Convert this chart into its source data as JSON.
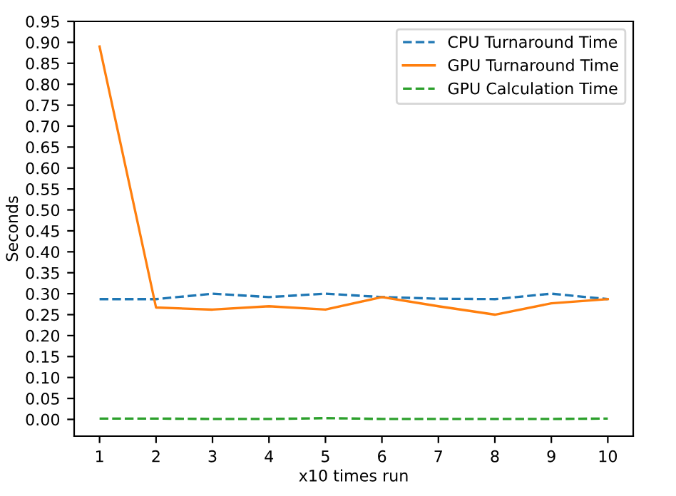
{
  "chart_data": {
    "type": "line",
    "xlabel": "x10 times run",
    "ylabel": "Seconds",
    "x": [
      1,
      2,
      3,
      4,
      5,
      6,
      7,
      8,
      9,
      10
    ],
    "series": [
      {
        "name": "CPU Turnaround Time",
        "color": "#1f77b4",
        "line_style": "dashed",
        "values": [
          0.287,
          0.287,
          0.3,
          0.292,
          0.3,
          0.292,
          0.288,
          0.287,
          0.3,
          0.287
        ]
      },
      {
        "name": "GPU Turnaround Time",
        "color": "#ff7f0e",
        "line_style": "solid",
        "values": [
          0.89,
          0.267,
          0.262,
          0.27,
          0.262,
          0.292,
          0.27,
          0.25,
          0.277,
          0.287
        ]
      },
      {
        "name": "GPU Calculation Time",
        "color": "#2ca02c",
        "line_style": "dashed",
        "values": [
          0.002,
          0.002,
          0.001,
          0.001,
          0.003,
          0.001,
          0.001,
          0.001,
          0.001,
          0.002
        ]
      }
    ],
    "xlim": [
      0.55,
      10.45
    ],
    "ylim": [
      -0.04,
      0.95
    ],
    "xticks": [
      1,
      2,
      3,
      4,
      5,
      6,
      7,
      8,
      9,
      10
    ],
    "yticks": [
      {
        "value": 0,
        "label": "0.00"
      },
      {
        "value": 0.05,
        "label": "0.05"
      },
      {
        "value": 0.1,
        "label": "0.10"
      },
      {
        "value": 0.15,
        "label": "0.15"
      },
      {
        "value": 0.2,
        "label": "0.20"
      },
      {
        "value": 0.25,
        "label": "0.25"
      },
      {
        "value": 0.3,
        "label": "0.30"
      },
      {
        "value": 0.35,
        "label": "0.35"
      },
      {
        "value": 0.4,
        "label": "0.40"
      },
      {
        "value": 0.45,
        "label": "0.45"
      },
      {
        "value": 0.5,
        "label": "0.50"
      },
      {
        "value": 0.55,
        "label": "0.55"
      },
      {
        "value": 0.6,
        "label": "0.60"
      },
      {
        "value": 0.65,
        "label": "0.65"
      },
      {
        "value": 0.7,
        "label": "0.70"
      },
      {
        "value": 0.75,
        "label": "0.75"
      },
      {
        "value": 0.8,
        "label": "0.80"
      },
      {
        "value": 0.85,
        "label": "0.85"
      },
      {
        "value": 0.9,
        "label": "0.90"
      },
      {
        "value": 0.95,
        "label": "0.95"
      }
    ],
    "grid": false,
    "legend": "top right",
    "marker": "none"
  }
}
